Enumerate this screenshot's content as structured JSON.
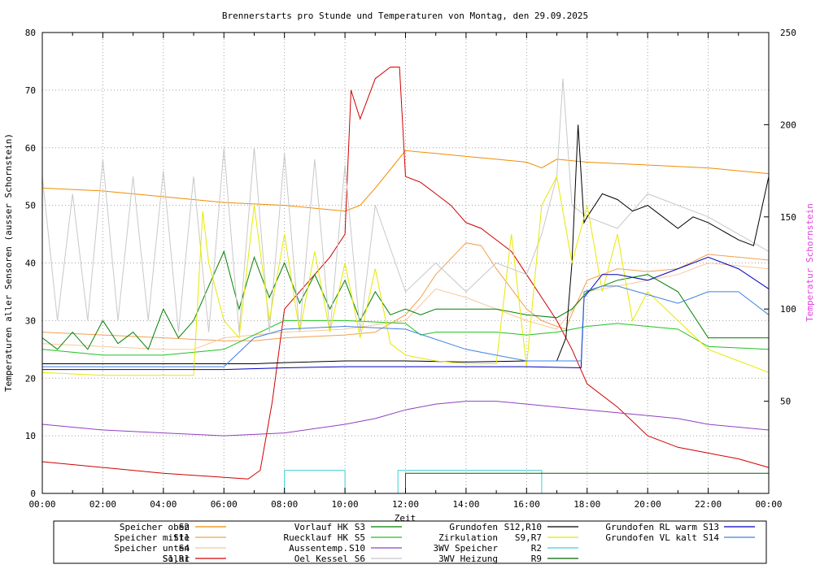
{
  "chart_data": {
    "type": "line",
    "title": "Brennerstarts pro Stunde und Temperaturen von Montag, den 29.09.2025",
    "xlabel": "Zeit",
    "ylabel": "Temperaturen aller Sensoren (ausser Schornstein)",
    "y2label": "Temperatur Schornstein",
    "ylim": [
      0,
      80
    ],
    "y2lim": [
      0,
      250
    ],
    "xlim_hours": [
      0,
      24
    ],
    "yticks": [
      0,
      10,
      20,
      30,
      40,
      50,
      60,
      70,
      80
    ],
    "y2ticks": [
      50,
      100,
      150,
      200,
      250
    ],
    "xticks": [
      "00:00",
      "02:00",
      "04:00",
      "06:00",
      "08:00",
      "10:00",
      "12:00",
      "14:00",
      "16:00",
      "18:00",
      "20:00",
      "22:00",
      "00:00"
    ],
    "grid": true,
    "legend_position": "bottom",
    "legend": [
      {
        "label": "Speicher oben",
        "code": "S2",
        "color": "#f08c00"
      },
      {
        "label": "Speicher mitte",
        "code": "S11",
        "color": "#f0a050"
      },
      {
        "label": "Speicher unten",
        "code": "S4",
        "color": "#f8c898"
      },
      {
        "label": "Solar",
        "code": "S1,R1",
        "color": "#d00000"
      },
      {
        "label": "Vorlauf HK",
        "code": "S3",
        "color": "#008000"
      },
      {
        "label": "Ruecklauf HK",
        "code": "S5",
        "color": "#20c020"
      },
      {
        "label": "Aussentemp.",
        "code": "S10",
        "color": "#9040c0"
      },
      {
        "label": "Oel Kessel",
        "code": "S6",
        "color": "#c8c8c8"
      },
      {
        "label": "Grundofen",
        "code": "S12,R10",
        "color": "#000000"
      },
      {
        "label": "Zirkulation",
        "code": "S9,R7",
        "color": "#e8e800"
      },
      {
        "label": "3WV Speicher",
        "code": "R2",
        "color": "#40d0d0"
      },
      {
        "label": "3WV Heizung",
        "code": "R9",
        "color": "#006000"
      },
      {
        "label": "Grundofen RL warm",
        "code": "S13",
        "color": "#0000c0"
      },
      {
        "label": "Grundofen VL kalt",
        "code": "S14",
        "color": "#4080e0"
      }
    ],
    "series": [
      {
        "name": "Speicher oben",
        "color": "#f08c00",
        "x": [
          0,
          2,
          4,
          6,
          8,
          10,
          10.5,
          11,
          12,
          13,
          14,
          15,
          16,
          16.5,
          17,
          18,
          20,
          22,
          24
        ],
        "y": [
          53,
          52.5,
          51.5,
          50.5,
          50,
          49,
          50,
          53,
          59.5,
          59,
          58.5,
          58,
          57.5,
          56.5,
          58,
          57.5,
          57,
          56.5,
          55.5
        ]
      },
      {
        "name": "Speicher mitte",
        "color": "#f0a050",
        "x": [
          0,
          2,
          4,
          6,
          7,
          8,
          10,
          11,
          12,
          12.5,
          13,
          14,
          14.5,
          15,
          16,
          16.5,
          17,
          17.3,
          17.4,
          18,
          19,
          20,
          21,
          22,
          23,
          24
        ],
        "y": [
          28,
          27.5,
          27,
          26.5,
          26.5,
          27,
          27.5,
          28,
          31,
          34,
          38,
          43.5,
          43,
          39,
          32,
          30,
          29,
          28.5,
          30,
          37,
          39,
          38.5,
          39,
          41.5,
          41,
          40.5
        ]
      },
      {
        "name": "Speicher unten",
        "color": "#f8c898",
        "x": [
          0,
          2,
          4,
          5,
          6,
          8,
          10,
          12,
          13,
          14,
          15,
          16,
          17,
          18,
          19,
          20,
          21,
          22,
          23,
          24
        ],
        "y": [
          26,
          25.5,
          25,
          25,
          27,
          28,
          28.5,
          30,
          35.5,
          34,
          32,
          30,
          28.5,
          35,
          36,
          37,
          38,
          40,
          39.5,
          39
        ]
      },
      {
        "name": "Solar",
        "color": "#d00000",
        "x": [
          0,
          2,
          4,
          6,
          6.8,
          7.2,
          7.6,
          8,
          8.5,
          9,
          9.5,
          10,
          10.2,
          10.5,
          11,
          11.5,
          11.8,
          12,
          12.5,
          13,
          13.5,
          14,
          14.5,
          15,
          15.5,
          16,
          16.5,
          17,
          17.5,
          18,
          19,
          20,
          21,
          22,
          23,
          24
        ],
        "y": [
          5.5,
          4.5,
          3.5,
          2.8,
          2.5,
          4,
          16,
          32,
          35,
          38,
          41,
          45,
          70,
          65,
          72,
          74,
          74,
          55,
          54,
          52,
          50,
          47,
          46,
          44,
          42,
          38,
          34,
          30,
          25,
          19,
          15,
          10,
          8,
          7,
          6,
          4.5
        ]
      },
      {
        "name": "Vorlauf HK",
        "color": "#008000",
        "x": [
          0,
          0.5,
          1,
          1.5,
          2,
          2.5,
          3,
          3.5,
          4,
          4.5,
          5,
          5.5,
          6,
          6.5,
          7,
          7.5,
          8,
          8.5,
          9,
          9.5,
          10,
          10.5,
          11,
          11.5,
          12,
          12.5,
          13,
          14,
          15,
          16,
          17,
          17.5,
          18,
          19,
          20,
          21,
          22,
          23,
          24
        ],
        "y": [
          27,
          25,
          28,
          25,
          30,
          26,
          28,
          25,
          32,
          27,
          30,
          36,
          42,
          32,
          41,
          34,
          40,
          33,
          38,
          32,
          37,
          30,
          35,
          31,
          32,
          31,
          32,
          32,
          32,
          31,
          30.5,
          32,
          35,
          37,
          38,
          35,
          27,
          27,
          27
        ]
      },
      {
        "name": "Ruecklauf HK",
        "color": "#20c020",
        "x": [
          0,
          2,
          4,
          6,
          8,
          10,
          12,
          12.5,
          13,
          14,
          15,
          16,
          17,
          18,
          19,
          20,
          21,
          22,
          24
        ],
        "y": [
          25,
          24,
          24,
          25,
          30,
          30,
          29.5,
          27.5,
          28,
          28,
          28,
          27.5,
          28,
          29,
          29.5,
          29,
          28.5,
          25.5,
          25
        ]
      },
      {
        "name": "Aussentemp.",
        "color": "#9040c0",
        "x": [
          0,
          2,
          4,
          6,
          8,
          10,
          11,
          12,
          13,
          14,
          15,
          16,
          17,
          18,
          19,
          20,
          21,
          22,
          23,
          24
        ],
        "y": [
          12,
          11,
          10.5,
          10,
          10.5,
          12,
          13,
          14.5,
          15.5,
          16,
          16,
          15.5,
          15,
          14.5,
          14,
          13.5,
          13,
          12,
          11.5,
          11
        ]
      },
      {
        "name": "Oel Kessel",
        "color": "#c8c8c8",
        "x": [
          0,
          0.5,
          1,
          1.5,
          2,
          2.5,
          3,
          3.5,
          4,
          4.5,
          5,
          5.5,
          6,
          6.5,
          7,
          7.5,
          8,
          8.5,
          9,
          9.5,
          10,
          10.5,
          11,
          12,
          13,
          14,
          15,
          16,
          16.5,
          17,
          17.2,
          17.5,
          18,
          19,
          20,
          21,
          22,
          23,
          24
        ],
        "y": [
          55,
          30,
          52,
          30,
          58,
          30,
          55,
          30,
          56,
          28,
          55,
          28,
          60,
          28,
          60,
          28,
          59,
          28,
          58,
          28,
          57,
          28,
          50,
          35,
          40,
          35,
          40,
          38,
          45,
          55,
          72,
          50,
          48,
          46,
          52,
          50,
          48,
          45,
          42
        ]
      },
      {
        "name": "Grundofen",
        "color": "#000000",
        "x": [
          0,
          2,
          4,
          6,
          7,
          8,
          10,
          12,
          14,
          16,
          17,
          17.3,
          17.5,
          17.7,
          17.9,
          18,
          18.5,
          19,
          19.5,
          20,
          20.5,
          21,
          21.5,
          22,
          23,
          23.5,
          24
        ],
        "y": [
          22.5,
          22.5,
          22.5,
          22.5,
          22.5,
          22.7,
          23,
          23,
          22.8,
          23,
          23,
          27,
          40,
          64,
          47,
          48,
          52,
          51,
          49,
          50,
          48,
          46,
          48,
          47,
          44,
          43,
          55
        ]
      },
      {
        "name": "Zirkulation",
        "color": "#e8e800",
        "x": [
          0,
          2,
          4,
          5,
          5.3,
          5.5,
          6,
          6.5,
          7,
          7.5,
          8,
          8.5,
          9,
          9.5,
          10,
          10.5,
          11,
          11.5,
          12,
          13,
          14,
          15,
          15.5,
          16,
          16.5,
          17,
          17.5,
          18,
          18.5,
          19,
          19.5,
          20,
          21,
          22,
          23,
          24
        ],
        "y": [
          21,
          20.5,
          20.5,
          20.5,
          49,
          40,
          30,
          27,
          50,
          30,
          45,
          28,
          42,
          28,
          40,
          27,
          39,
          26,
          24,
          23,
          22.5,
          22.5,
          45,
          22,
          50,
          55,
          40,
          50,
          35,
          45,
          30,
          35,
          30,
          25,
          23,
          21
        ]
      },
      {
        "name": "3WV Speicher",
        "color": "#40d0d0",
        "x": [
          0,
          8,
          8,
          10,
          10,
          11.75,
          11.75,
          16.5,
          16.5,
          24
        ],
        "y": [
          0,
          0,
          4,
          4,
          0,
          0,
          4,
          4,
          0,
          0
        ]
      },
      {
        "name": "3WV Heizung",
        "color": "#006000",
        "x": [
          0,
          12,
          12,
          16.8,
          16.8,
          24
        ],
        "y": [
          0,
          0,
          3.5,
          3.5,
          3.5,
          3.5
        ]
      },
      {
        "name": "Grundofen RL warm",
        "color": "#0000c0",
        "x": [
          0,
          2,
          4,
          6,
          8,
          10,
          12,
          14,
          16,
          17.8,
          17.9,
          18.5,
          19,
          20,
          21,
          22,
          23,
          24
        ],
        "y": [
          21.5,
          21.5,
          21.5,
          21.5,
          21.8,
          22,
          22,
          22,
          22,
          21.8,
          34,
          38,
          38,
          37,
          39,
          41,
          39,
          35.5
        ]
      },
      {
        "name": "Grundofen VL kalt",
        "color": "#4080e0",
        "x": [
          0,
          2,
          4,
          6,
          7,
          8,
          10,
          12,
          14,
          16,
          17.8,
          17.9,
          18.5,
          19,
          20,
          21,
          22,
          23,
          24
        ],
        "y": [
          22,
          22,
          22,
          22,
          27,
          28.5,
          29,
          28.5,
          25,
          23,
          23,
          35,
          36,
          36,
          34.5,
          33,
          35,
          35,
          31
        ]
      }
    ]
  }
}
